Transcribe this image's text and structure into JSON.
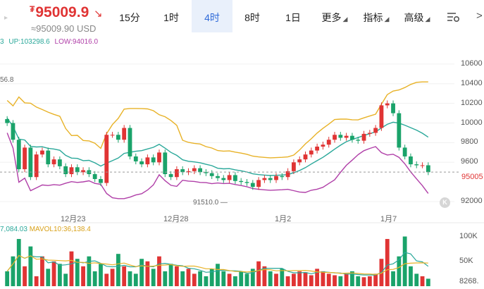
{
  "header": {
    "price": "95009.9",
    "coin_symbol": "₮",
    "change_arrow": "↘",
    "usd_value": "≈95009.90 USD",
    "left_arrow": "▸"
  },
  "tabs": [
    {
      "label": "15分",
      "active": false
    },
    {
      "label": "1时",
      "active": false
    },
    {
      "label": "4时",
      "active": true
    },
    {
      "label": "8时",
      "active": false
    },
    {
      "label": "1日",
      "active": false
    },
    {
      "label": "更多",
      "active": false,
      "dropdown": true
    },
    {
      "label": "指标",
      "active": false,
      "dropdown": true
    },
    {
      "label": "高级",
      "active": false,
      "dropdown": true
    }
  ],
  "toolbar": {
    "settings_icon": "chart-settings-icon",
    "more_icon": "chevron-right-icon",
    "more_label": ">"
  },
  "legend": {
    "mid_fragment": "3",
    "up": "UP:103298.6",
    "low": "LOW:94016.0"
  },
  "volume_legend": {
    "mavol5": "7,084.03",
    "mavol10": "MAVOL10:36,138.4"
  },
  "annotations": {
    "top_partial": "56.8",
    "low_marker": "91510.0 —",
    "last_price_tag": "95005"
  },
  "k_button": "K",
  "colors": {
    "up": "#e03434",
    "down": "#1aa36a",
    "mid": "#2aa89a",
    "upper": "#e8b227",
    "lower": "#b03fa8",
    "accent": "#2f6ad9"
  },
  "chart_data": {
    "type": "candlestick",
    "price_axis_ticks": [
      "106000",
      "104000",
      "102000",
      "100000",
      "98000",
      "96000",
      "92000"
    ],
    "price_axis_labels": [
      "10600",
      "10400",
      "10200",
      "10000",
      "9800",
      "9600",
      "92000"
    ],
    "volume_axis_labels": [
      "100K",
      "50K",
      "8268."
    ],
    "x_tick_labels": [
      "12月23",
      "12月28",
      "1月2",
      "1月7"
    ],
    "last_price": 95009.9,
    "bollinger": {
      "up": 103298.6,
      "low": 94016.0
    },
    "low_marker": 91510.0,
    "close_trend": [
      100000,
      98300,
      95300,
      97500,
      94500,
      96800,
      97200,
      95800,
      96300,
      95600,
      94800,
      95500,
      95000,
      95200,
      94800,
      94300,
      93900,
      98800,
      98800,
      98300,
      99500,
      96600,
      96100,
      95800,
      96500,
      96000,
      97000,
      94800,
      94500,
      95300,
      95000,
      95100,
      95400,
      95000,
      94900,
      94600,
      94400,
      94200,
      94700,
      94100,
      94000,
      93900,
      93500,
      94200,
      94400,
      94200,
      94600,
      94500,
      95100,
      96000,
      96300,
      96800,
      97200,
      97600,
      97800,
      98300,
      98800,
      98500,
      98700,
      98300,
      98200,
      98900,
      99000,
      99500,
      101800,
      102000,
      101000,
      97500,
      96600,
      95800,
      95700,
      95700,
      95000
    ],
    "volume_series_note": "bars shown in lower pane",
    "volume_values": [
      30,
      60,
      95,
      40,
      80,
      20,
      60,
      35,
      50,
      45,
      25,
      70,
      55,
      40,
      60,
      30,
      45,
      25,
      35,
      65,
      40,
      30,
      25,
      55,
      50,
      35,
      60,
      30,
      45,
      40,
      30,
      35,
      25,
      30,
      20,
      35,
      45,
      30,
      25,
      20,
      30,
      25,
      35,
      50,
      40,
      30,
      25,
      35,
      20,
      25,
      30,
      28,
      22,
      35,
      30,
      25,
      22,
      20,
      25,
      30,
      20,
      18,
      20,
      25,
      55,
      95,
      30,
      60,
      100,
      40,
      25,
      20,
      15
    ]
  }
}
